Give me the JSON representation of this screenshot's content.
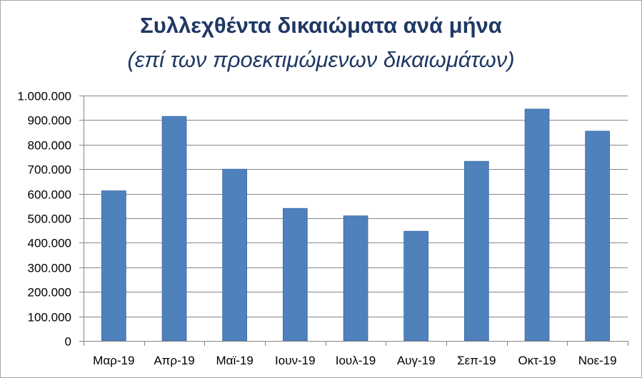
{
  "chart_data": {
    "type": "bar",
    "title": "Συλλεχθέντα δικαιώματα ανά μήνα",
    "subtitle": "(επί των προεκτιμώμενων δικαιωμάτων)",
    "xlabel": "",
    "ylabel": "",
    "categories": [
      "Μαρ-19",
      "Απρ-19",
      "Μαϊ-19",
      "Ιουν-19",
      "Ιουλ-19",
      "Αυγ-19",
      "Σεπ-19",
      "Οκτ-19",
      "Νοε-19"
    ],
    "series": [
      {
        "values": [
          612000,
          915000,
          700000,
          540000,
          510000,
          447000,
          732000,
          945000,
          855000
        ]
      }
    ],
    "ylim": [
      0,
      1000000
    ],
    "yticks": [
      0,
      100000,
      200000,
      300000,
      400000,
      500000,
      600000,
      700000,
      800000,
      900000,
      1000000
    ],
    "ytick_labels": [
      "0",
      "100.000",
      "200.000",
      "300.000",
      "400.000",
      "500.000",
      "600.000",
      "700.000",
      "800.000",
      "900.000",
      "1.000.000"
    ],
    "grid": true,
    "legend": "none",
    "colors": {
      "bar": "#4f81bd",
      "bar_border": "#3a6aa3",
      "grid": "#868686",
      "axis": "#868686",
      "title": "#1f3864"
    }
  }
}
